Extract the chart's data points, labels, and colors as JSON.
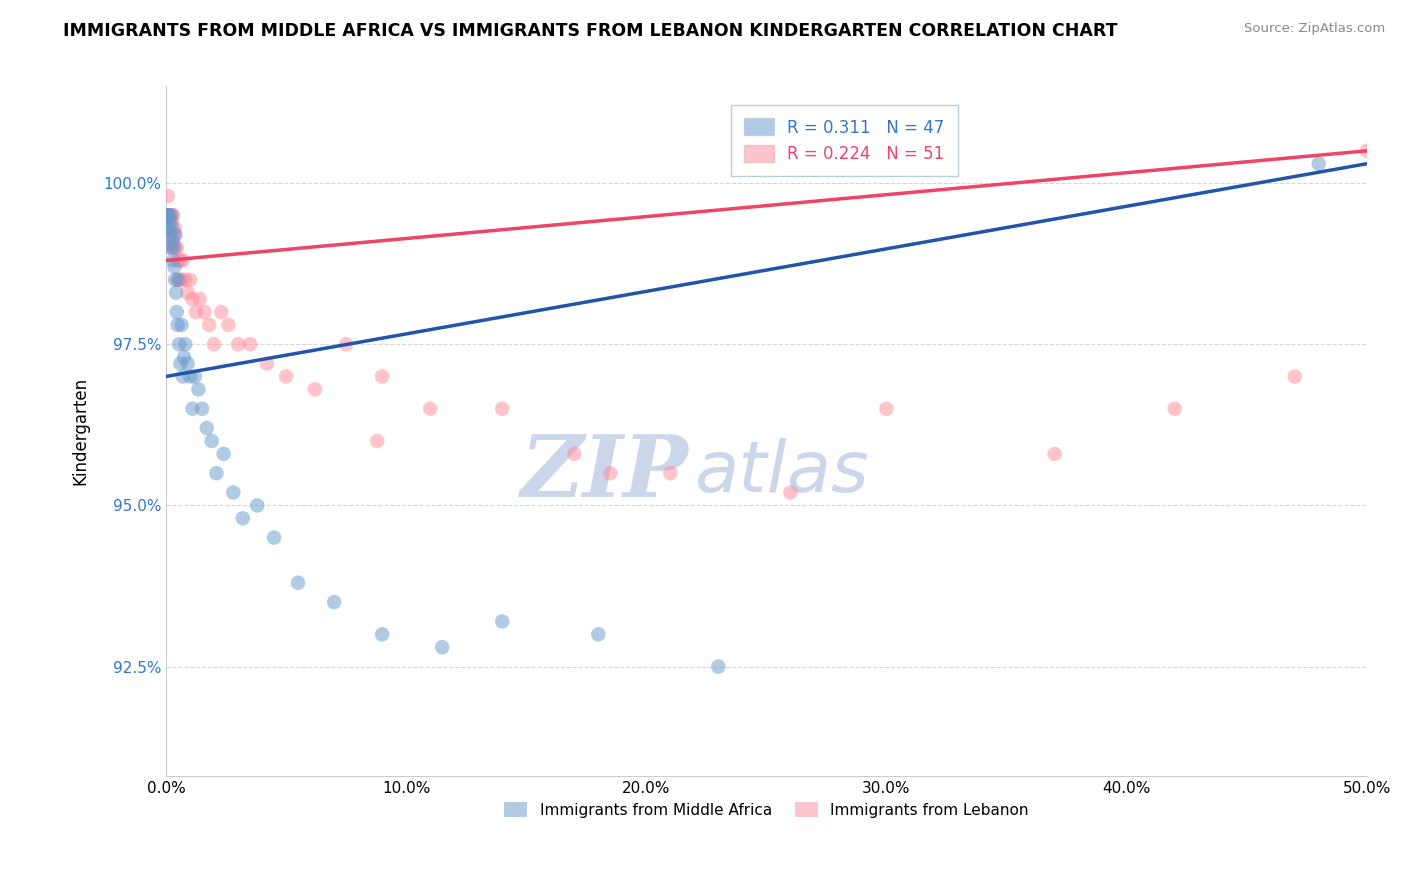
{
  "title": "IMMIGRANTS FROM MIDDLE AFRICA VS IMMIGRANTS FROM LEBANON KINDERGARTEN CORRELATION CHART",
  "source": "Source: ZipAtlas.com",
  "xlabel": "",
  "ylabel": "Kindergarten",
  "xlim": [
    0.0,
    50.0
  ],
  "ylim": [
    90.8,
    101.5
  ],
  "yticks": [
    92.5,
    95.0,
    97.5,
    100.0
  ],
  "ytick_labels": [
    "92.5%",
    "95.0%",
    "97.5%",
    "100.0%"
  ],
  "xticks": [
    0.0,
    10.0,
    20.0,
    30.0,
    40.0,
    50.0
  ],
  "xtick_labels": [
    "0.0%",
    "10.0%",
    "20.0%",
    "30.0%",
    "40.0%",
    "50.0%"
  ],
  "blue_R": 0.311,
  "blue_N": 47,
  "pink_R": 0.224,
  "pink_N": 51,
  "blue_color": "#6699CC",
  "pink_color": "#FF8899",
  "blue_line_color": "#2255AA",
  "pink_line_color": "#EE4466",
  "watermark_zip": "ZIP",
  "watermark_atlas": "atlas",
  "watermark_color_zip": "#AABBDD",
  "watermark_color_atlas": "#AABBDD",
  "blue_label": "Immigrants from Middle Africa",
  "pink_label": "Immigrants from Lebanon",
  "blue_x": [
    0.05,
    0.08,
    0.1,
    0.12,
    0.15,
    0.18,
    0.2,
    0.22,
    0.25,
    0.28,
    0.3,
    0.32,
    0.35,
    0.38,
    0.4,
    0.42,
    0.45,
    0.48,
    0.5,
    0.55,
    0.6,
    0.65,
    0.7,
    0.75,
    0.8,
    0.9,
    1.0,
    1.1,
    1.2,
    1.35,
    1.5,
    1.7,
    1.9,
    2.1,
    2.4,
    2.8,
    3.2,
    3.8,
    4.5,
    5.5,
    7.0,
    9.0,
    11.5,
    14.0,
    18.0,
    23.0,
    48.0
  ],
  "blue_y": [
    99.5,
    99.3,
    99.5,
    99.5,
    99.4,
    99.2,
    99.0,
    99.5,
    99.3,
    99.1,
    98.8,
    99.0,
    98.7,
    98.5,
    99.2,
    98.3,
    98.0,
    97.8,
    98.5,
    97.5,
    97.2,
    97.8,
    97.0,
    97.3,
    97.5,
    97.2,
    97.0,
    96.5,
    97.0,
    96.8,
    96.5,
    96.2,
    96.0,
    95.5,
    95.8,
    95.2,
    94.8,
    95.0,
    94.5,
    93.8,
    93.5,
    93.0,
    92.8,
    93.2,
    93.0,
    92.5,
    100.3
  ],
  "pink_x": [
    0.05,
    0.08,
    0.1,
    0.12,
    0.15,
    0.18,
    0.2,
    0.22,
    0.25,
    0.28,
    0.3,
    0.32,
    0.35,
    0.38,
    0.4,
    0.45,
    0.5,
    0.55,
    0.6,
    0.65,
    0.7,
    0.8,
    0.9,
    1.0,
    1.1,
    1.25,
    1.4,
    1.6,
    1.8,
    2.0,
    2.3,
    2.6,
    3.0,
    3.5,
    4.2,
    5.0,
    6.2,
    7.5,
    9.0,
    11.0,
    14.0,
    17.0,
    8.8,
    18.5,
    21.0,
    26.0,
    30.0,
    37.0,
    42.0,
    47.0,
    50.0
  ],
  "pink_y": [
    99.5,
    99.8,
    99.5,
    99.3,
    99.5,
    99.2,
    99.0,
    99.5,
    99.4,
    99.2,
    99.5,
    99.0,
    99.2,
    99.3,
    99.0,
    99.0,
    98.8,
    98.5,
    98.8,
    98.5,
    98.8,
    98.5,
    98.3,
    98.5,
    98.2,
    98.0,
    98.2,
    98.0,
    97.8,
    97.5,
    98.0,
    97.8,
    97.5,
    97.5,
    97.2,
    97.0,
    96.8,
    97.5,
    97.0,
    96.5,
    96.5,
    95.8,
    96.0,
    95.5,
    95.5,
    95.2,
    96.5,
    95.8,
    96.5,
    97.0,
    100.5
  ],
  "blue_trend_x": [
    0.0,
    50.0
  ],
  "blue_trend_y": [
    97.0,
    100.3
  ],
  "pink_trend_x": [
    0.0,
    50.0
  ],
  "pink_trend_y": [
    98.8,
    100.5
  ]
}
